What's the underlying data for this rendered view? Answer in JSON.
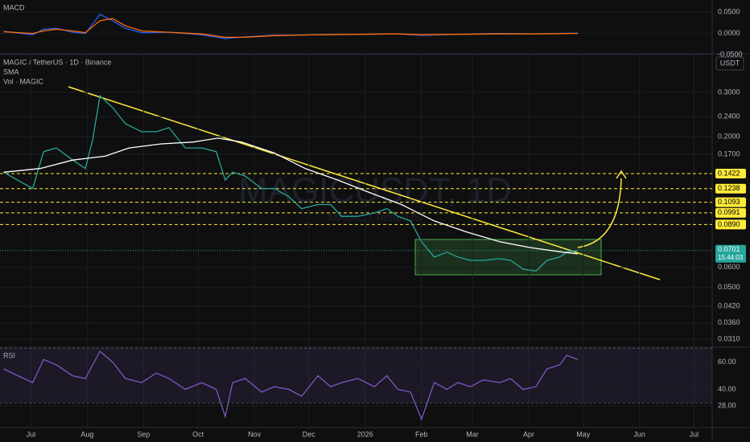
{
  "chart_data": [
    {
      "type": "line",
      "title": "MAGIC / TetherUS · 1D · Binance",
      "indicators": [
        "SMA",
        "Vol · MAGIC"
      ],
      "currency": "USDT",
      "watermark": "MAGICUSDT, 1D",
      "watermark_sub": "MAGIC / TetherUS",
      "log_scale": true,
      "ylim": [
        0.0288,
        0.428
      ],
      "xlim": [
        -17,
        375
      ],
      "yticks": [
        {
          "value": 0.3,
          "label": "0.3000"
        },
        {
          "value": 0.24,
          "label": "0.2400"
        },
        {
          "value": 0.2,
          "label": "0.2000"
        },
        {
          "value": 0.17,
          "label": "0.1700"
        },
        {
          "value": 0.06,
          "label": "0.0600"
        },
        {
          "value": 0.05,
          "label": "0.0500"
        },
        {
          "value": 0.042,
          "label": "0.0420"
        },
        {
          "value": 0.036,
          "label": "0.0360"
        },
        {
          "value": 0.031,
          "label": "0.0310"
        }
      ],
      "xticks": [
        {
          "value": 0,
          "label": "Jul"
        },
        {
          "value": 31,
          "label": "Aug"
        },
        {
          "value": 62,
          "label": "Sep"
        },
        {
          "value": 92,
          "label": "Oct"
        },
        {
          "value": 123,
          "label": "Nov"
        },
        {
          "value": 153,
          "label": "Dec"
        },
        {
          "value": 184,
          "label": "2026"
        },
        {
          "value": 215,
          "label": "Feb"
        },
        {
          "value": 243,
          "label": "Mar"
        },
        {
          "value": 274,
          "label": "Apr"
        },
        {
          "value": 304,
          "label": "May"
        },
        {
          "value": 335,
          "label": "Jun"
        },
        {
          "value": 365,
          "label": "Jul"
        }
      ],
      "levels": [
        0.1422,
        0.1238,
        0.1093,
        0.0991,
        {
          "value": 0.089,
          "label": "0.0890"
        }
      ],
      "level_color": "#ffeb3b",
      "last_price": 0.0701,
      "countdown": "15:44:03",
      "last_color": "#26a69a",
      "series": [
        {
          "color": "#26a69a",
          "x": [
            -15,
            1,
            7,
            14,
            23,
            30,
            34,
            38,
            45,
            52,
            61,
            69,
            76,
            85,
            94,
            102,
            107,
            111,
            118,
            127,
            134,
            142,
            149,
            158,
            165,
            171,
            180,
            189,
            196,
            202,
            209,
            215,
            222,
            229,
            235,
            242,
            249,
            258,
            264,
            271,
            278,
            284,
            291,
            295,
            301
          ],
          "values": [
            0.144,
            0.124,
            0.174,
            0.18,
            0.161,
            0.149,
            0.194,
            0.291,
            0.261,
            0.225,
            0.209,
            0.209,
            0.217,
            0.18,
            0.18,
            0.174,
            0.134,
            0.144,
            0.139,
            0.124,
            0.124,
            0.115,
            0.103,
            0.107,
            0.107,
            0.096,
            0.096,
            0.099,
            0.103,
            0.096,
            0.092,
            0.076,
            0.066,
            0.069,
            0.066,
            0.064,
            0.064,
            0.065,
            0.064,
            0.059,
            0.058,
            0.064,
            0.066,
            0.069,
            0.0701
          ]
        },
        {
          "name": "SMA",
          "color": "#ffffff",
          "x": [
            -15,
            5,
            23,
            41,
            54,
            72,
            89,
            103,
            116,
            134,
            151,
            169,
            187,
            204,
            222,
            240,
            258,
            275,
            293,
            301
          ],
          "values": [
            0.144,
            0.149,
            0.161,
            0.167,
            0.18,
            0.187,
            0.19,
            0.197,
            0.19,
            0.172,
            0.149,
            0.134,
            0.119,
            0.107,
            0.092,
            0.083,
            0.076,
            0.072,
            0.069,
            0.068
          ]
        }
      ]
    },
    {
      "type": "line",
      "title": "MACD",
      "ylim": [
        -0.048,
        0.0788
      ],
      "xlim": [
        -17,
        375
      ],
      "yticks": [
        {
          "value": 0.05,
          "label": "0.0500"
        },
        {
          "value": 0,
          "label": "0.0000"
        },
        {
          "value": -0.05,
          "label": "-0.0500"
        }
      ],
      "series": [
        {
          "color": "#2962ff",
          "x": [
            -15,
            1,
            7,
            14,
            23,
            30,
            38,
            45,
            52,
            61,
            76,
            94,
            107,
            118,
            134,
            158,
            180,
            202,
            215,
            235,
            258,
            278,
            301
          ],
          "values": [
            0.005,
            -0.003,
            0.01,
            0.012,
            0.003,
            0,
            0.045,
            0.03,
            0.012,
            0.002,
            0.003,
            -0.003,
            -0.012,
            -0.008,
            -0.004,
            -0.003,
            -0.002,
            -0.001,
            -0.004,
            -0.002,
            0,
            -0.001,
            0.001
          ]
        },
        {
          "color": "#ff6d00",
          "x": [
            -15,
            1,
            7,
            14,
            23,
            30,
            38,
            45,
            52,
            61,
            76,
            94,
            107,
            118,
            134,
            158,
            180,
            202,
            215,
            235,
            258,
            278,
            301
          ],
          "values": [
            0.004,
            0.0,
            0.006,
            0.01,
            0.006,
            0.002,
            0.03,
            0.035,
            0.018,
            0.006,
            0.003,
            -0.001,
            -0.009,
            -0.009,
            -0.005,
            -0.003,
            -0.002,
            -0.001,
            -0.003,
            -0.002,
            -0.001,
            -0.001,
            0.0
          ]
        }
      ]
    },
    {
      "type": "line",
      "title": "RSI",
      "ylim": [
        12,
        71
      ],
      "xlim": [
        -17,
        375
      ],
      "bands": [
        30,
        70
      ],
      "yticks": [
        {
          "value": 60,
          "label": "60.00"
        },
        {
          "value": 40,
          "label": "40.00"
        },
        {
          "value": 28,
          "label": "28.00"
        }
      ],
      "series": [
        {
          "color": "#7e57c2",
          "x": [
            -15,
            1,
            7,
            14,
            23,
            30,
            38,
            45,
            52,
            61,
            69,
            76,
            85,
            94,
            102,
            107,
            111,
            118,
            127,
            134,
            142,
            149,
            158,
            165,
            171,
            180,
            189,
            196,
            202,
            209,
            215,
            222,
            229,
            235,
            242,
            249,
            258,
            264,
            271,
            278,
            284,
            291,
            295,
            301
          ],
          "values": [
            55,
            45,
            62,
            58,
            50,
            48,
            68,
            60,
            48,
            45,
            52,
            48,
            40,
            45,
            40,
            20,
            45,
            48,
            38,
            42,
            40,
            35,
            50,
            42,
            45,
            48,
            42,
            50,
            40,
            38,
            18,
            45,
            40,
            45,
            42,
            47,
            45,
            48,
            40,
            42,
            55,
            58,
            65,
            62
          ]
        }
      ]
    }
  ]
}
